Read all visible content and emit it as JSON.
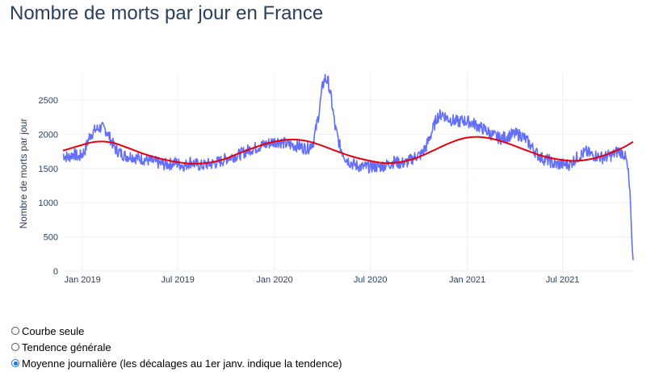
{
  "title": "Nombre de morts par jour en France",
  "chart_data": {
    "type": "line",
    "title": "Nombre de morts par jour en France",
    "ylabel": "Nombre de morts par jour",
    "xlabel": "",
    "ylim": [
      0,
      2900
    ],
    "xlim": [
      "2018-11-25",
      "2021-11-12"
    ],
    "y_ticks": [
      0,
      500,
      1000,
      1500,
      2000,
      2500
    ],
    "x_ticks": [
      {
        "date": "2019-01-01",
        "label": "Jan 2019"
      },
      {
        "date": "2019-07-01",
        "label": "Jul 2019"
      },
      {
        "date": "2020-01-01",
        "label": "Jan 2020"
      },
      {
        "date": "2020-07-01",
        "label": "Jul 2020"
      },
      {
        "date": "2021-01-01",
        "label": "Jan 2021"
      },
      {
        "date": "2021-07-01",
        "label": "Jul 2021"
      }
    ],
    "grid": true,
    "series": [
      {
        "color": "#636efa",
        "points": [
          [
            "2018-11-25",
            1700
          ],
          [
            "2018-12-05",
            1660
          ],
          [
            "2018-12-15",
            1720
          ],
          [
            "2018-12-25",
            1660
          ],
          [
            "2019-01-05",
            1750
          ],
          [
            "2019-01-15",
            1980
          ],
          [
            "2019-01-25",
            2060
          ],
          [
            "2019-02-05",
            2100
          ],
          [
            "2019-02-15",
            2060
          ],
          [
            "2019-02-25",
            1900
          ],
          [
            "2019-03-05",
            1780
          ],
          [
            "2019-03-15",
            1720
          ],
          [
            "2019-03-25",
            1680
          ],
          [
            "2019-04-05",
            1680
          ],
          [
            "2019-04-15",
            1650
          ],
          [
            "2019-04-25",
            1640
          ],
          [
            "2019-05-05",
            1620
          ],
          [
            "2019-05-15",
            1600
          ],
          [
            "2019-05-25",
            1580
          ],
          [
            "2019-06-05",
            1560
          ],
          [
            "2019-06-15",
            1560
          ],
          [
            "2019-06-25",
            1590
          ],
          [
            "2019-07-05",
            1560
          ],
          [
            "2019-07-15",
            1540
          ],
          [
            "2019-07-25",
            1600
          ],
          [
            "2019-08-05",
            1560
          ],
          [
            "2019-08-15",
            1540
          ],
          [
            "2019-08-25",
            1560
          ],
          [
            "2019-09-05",
            1570
          ],
          [
            "2019-09-15",
            1590
          ],
          [
            "2019-09-25",
            1620
          ],
          [
            "2019-10-05",
            1660
          ],
          [
            "2019-10-15",
            1680
          ],
          [
            "2019-10-25",
            1700
          ],
          [
            "2019-11-05",
            1740
          ],
          [
            "2019-11-15",
            1780
          ],
          [
            "2019-11-25",
            1800
          ],
          [
            "2019-12-05",
            1830
          ],
          [
            "2019-12-15",
            1850
          ],
          [
            "2019-12-25",
            1880
          ],
          [
            "2020-01-05",
            1900
          ],
          [
            "2020-01-15",
            1880
          ],
          [
            "2020-01-25",
            1850
          ],
          [
            "2020-02-05",
            1840
          ],
          [
            "2020-02-15",
            1830
          ],
          [
            "2020-02-25",
            1800
          ],
          [
            "2020-03-05",
            1800
          ],
          [
            "2020-03-15",
            1900
          ],
          [
            "2020-03-25",
            2300
          ],
          [
            "2020-04-01",
            2700
          ],
          [
            "2020-04-06",
            2820
          ],
          [
            "2020-04-12",
            2760
          ],
          [
            "2020-04-18",
            2500
          ],
          [
            "2020-04-25",
            2100
          ],
          [
            "2020-05-05",
            1800
          ],
          [
            "2020-05-15",
            1650
          ],
          [
            "2020-05-25",
            1580
          ],
          [
            "2020-06-05",
            1540
          ],
          [
            "2020-06-15",
            1520
          ],
          [
            "2020-06-25",
            1520
          ],
          [
            "2020-07-05",
            1530
          ],
          [
            "2020-07-15",
            1520
          ],
          [
            "2020-07-25",
            1540
          ],
          [
            "2020-08-05",
            1560
          ],
          [
            "2020-08-15",
            1600
          ],
          [
            "2020-08-25",
            1580
          ],
          [
            "2020-09-05",
            1580
          ],
          [
            "2020-09-15",
            1620
          ],
          [
            "2020-09-25",
            1680
          ],
          [
            "2020-10-05",
            1700
          ],
          [
            "2020-10-15",
            1820
          ],
          [
            "2020-10-25",
            2020
          ],
          [
            "2020-11-05",
            2250
          ],
          [
            "2020-11-15",
            2300
          ],
          [
            "2020-11-25",
            2230
          ],
          [
            "2020-12-05",
            2200
          ],
          [
            "2020-12-15",
            2180
          ],
          [
            "2020-12-25",
            2200
          ],
          [
            "2021-01-05",
            2180
          ],
          [
            "2021-01-15",
            2150
          ],
          [
            "2021-01-25",
            2100
          ],
          [
            "2021-02-05",
            2060
          ],
          [
            "2021-02-15",
            2000
          ],
          [
            "2021-02-25",
            1960
          ],
          [
            "2021-03-05",
            1940
          ],
          [
            "2021-03-15",
            1960
          ],
          [
            "2021-03-25",
            1990
          ],
          [
            "2021-04-05",
            2000
          ],
          [
            "2021-04-15",
            1980
          ],
          [
            "2021-04-25",
            1900
          ],
          [
            "2021-05-05",
            1800
          ],
          [
            "2021-05-15",
            1700
          ],
          [
            "2021-05-25",
            1640
          ],
          [
            "2021-06-05",
            1620
          ],
          [
            "2021-06-15",
            1560
          ],
          [
            "2021-06-25",
            1560
          ],
          [
            "2021-07-05",
            1560
          ],
          [
            "2021-07-15",
            1560
          ],
          [
            "2021-07-25",
            1640
          ],
          [
            "2021-08-05",
            1700
          ],
          [
            "2021-08-15",
            1740
          ],
          [
            "2021-08-25",
            1700
          ],
          [
            "2021-09-05",
            1680
          ],
          [
            "2021-09-15",
            1660
          ],
          [
            "2021-09-25",
            1680
          ],
          [
            "2021-10-05",
            1700
          ],
          [
            "2021-10-15",
            1760
          ],
          [
            "2021-10-25",
            1720
          ],
          [
            "2021-10-30",
            1620
          ],
          [
            "2021-11-03",
            1420
          ],
          [
            "2021-11-07",
            1000
          ],
          [
            "2021-11-10",
            400
          ],
          [
            "2021-11-12",
            160
          ]
        ]
      },
      {
        "color": "#e8000b",
        "points": [
          [
            "2018-11-25",
            1760
          ],
          [
            "2018-12-25",
            1830
          ],
          [
            "2019-01-25",
            1890
          ],
          [
            "2019-02-25",
            1880
          ],
          [
            "2019-03-25",
            1810
          ],
          [
            "2019-04-25",
            1720
          ],
          [
            "2019-05-25",
            1650
          ],
          [
            "2019-06-25",
            1600
          ],
          [
            "2019-07-25",
            1570
          ],
          [
            "2019-08-25",
            1580
          ],
          [
            "2019-09-25",
            1630
          ],
          [
            "2019-10-25",
            1720
          ],
          [
            "2019-11-25",
            1810
          ],
          [
            "2019-12-25",
            1880
          ],
          [
            "2020-01-25",
            1920
          ],
          [
            "2020-02-25",
            1910
          ],
          [
            "2020-03-25",
            1850
          ],
          [
            "2020-04-25",
            1760
          ],
          [
            "2020-05-25",
            1680
          ],
          [
            "2020-06-25",
            1620
          ],
          [
            "2020-07-25",
            1580
          ],
          [
            "2020-08-25",
            1590
          ],
          [
            "2020-09-25",
            1650
          ],
          [
            "2020-10-25",
            1750
          ],
          [
            "2020-11-25",
            1860
          ],
          [
            "2020-12-25",
            1940
          ],
          [
            "2021-01-25",
            1960
          ],
          [
            "2021-02-25",
            1920
          ],
          [
            "2021-03-25",
            1850
          ],
          [
            "2021-04-25",
            1760
          ],
          [
            "2021-05-25",
            1680
          ],
          [
            "2021-06-25",
            1630
          ],
          [
            "2021-07-25",
            1610
          ],
          [
            "2021-08-25",
            1640
          ],
          [
            "2021-09-25",
            1710
          ],
          [
            "2021-10-25",
            1810
          ],
          [
            "2021-11-12",
            1890
          ]
        ]
      }
    ]
  },
  "controls": {
    "options": [
      {
        "label": "Courbe seule",
        "checked": false
      },
      {
        "label": "Tendence générale",
        "checked": false
      },
      {
        "label": "Moyenne journalière (les décalages au 1er janv. indique la tendence)",
        "checked": true
      }
    ]
  }
}
